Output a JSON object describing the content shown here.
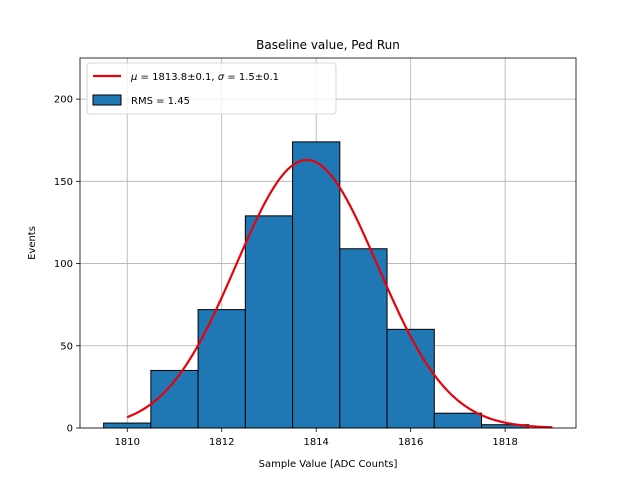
{
  "chart_data": {
    "type": "bar",
    "title": "Baseline value, Ped Run",
    "xlabel": "Sample Value [ADC Counts]",
    "ylabel": "Events",
    "xlim": [
      1809.0,
      1819.5
    ],
    "ylim": [
      0,
      225
    ],
    "xticks": [
      1810,
      1812,
      1814,
      1816,
      1818
    ],
    "yticks": [
      0,
      50,
      100,
      150,
      200
    ],
    "grid": true,
    "histogram": {
      "name": "RMS = 1.45",
      "color": "#1f77b4",
      "bin_edges": [
        1809.5,
        1810.5,
        1811.5,
        1812.5,
        1813.5,
        1814.5,
        1815.5,
        1816.5,
        1817.5,
        1818.5
      ],
      "counts": [
        3,
        35,
        72,
        129,
        174,
        109,
        60,
        9,
        2
      ]
    },
    "fit": {
      "name": "μ = 1813.8±0.1, σ = 1.5±0.1",
      "name_parts": {
        "mu_symbol": "μ",
        "mu_text": " = 1813.8±0.1, ",
        "sigma_symbol": "σ",
        "sigma_text": " = 1.5±0.1"
      },
      "color": "#e8000b",
      "type": "gaussian",
      "amplitude": 163,
      "mean": 1813.8,
      "sigma": 1.5,
      "x_range": [
        1810.0,
        1819.0
      ]
    },
    "legend_position": "upper-left"
  }
}
